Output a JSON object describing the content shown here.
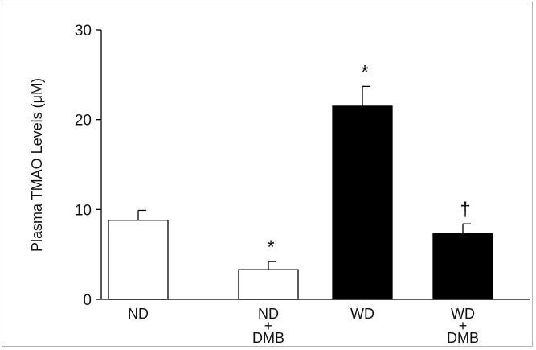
{
  "chart_data": {
    "type": "bar",
    "categories": [
      [
        "ND"
      ],
      [
        "ND",
        "+",
        "DMB"
      ],
      [
        "WD"
      ],
      [
        "WD",
        "+",
        "DMB"
      ]
    ],
    "values": [
      8.8,
      3.3,
      21.5,
      7.3
    ],
    "error_upper": [
      1.1,
      0.9,
      2.2,
      1.1
    ],
    "annotations": [
      "",
      "*",
      "*",
      "†"
    ],
    "bar_fill": [
      "#ffffff",
      "#ffffff",
      "#000000",
      "#000000"
    ],
    "title": "",
    "xlabel": "",
    "ylabel": "Plasma TMAO Levels (μM)",
    "ylim": [
      0,
      30
    ],
    "yticks": [
      "0",
      "10",
      "20",
      "30"
    ],
    "grid": false
  }
}
